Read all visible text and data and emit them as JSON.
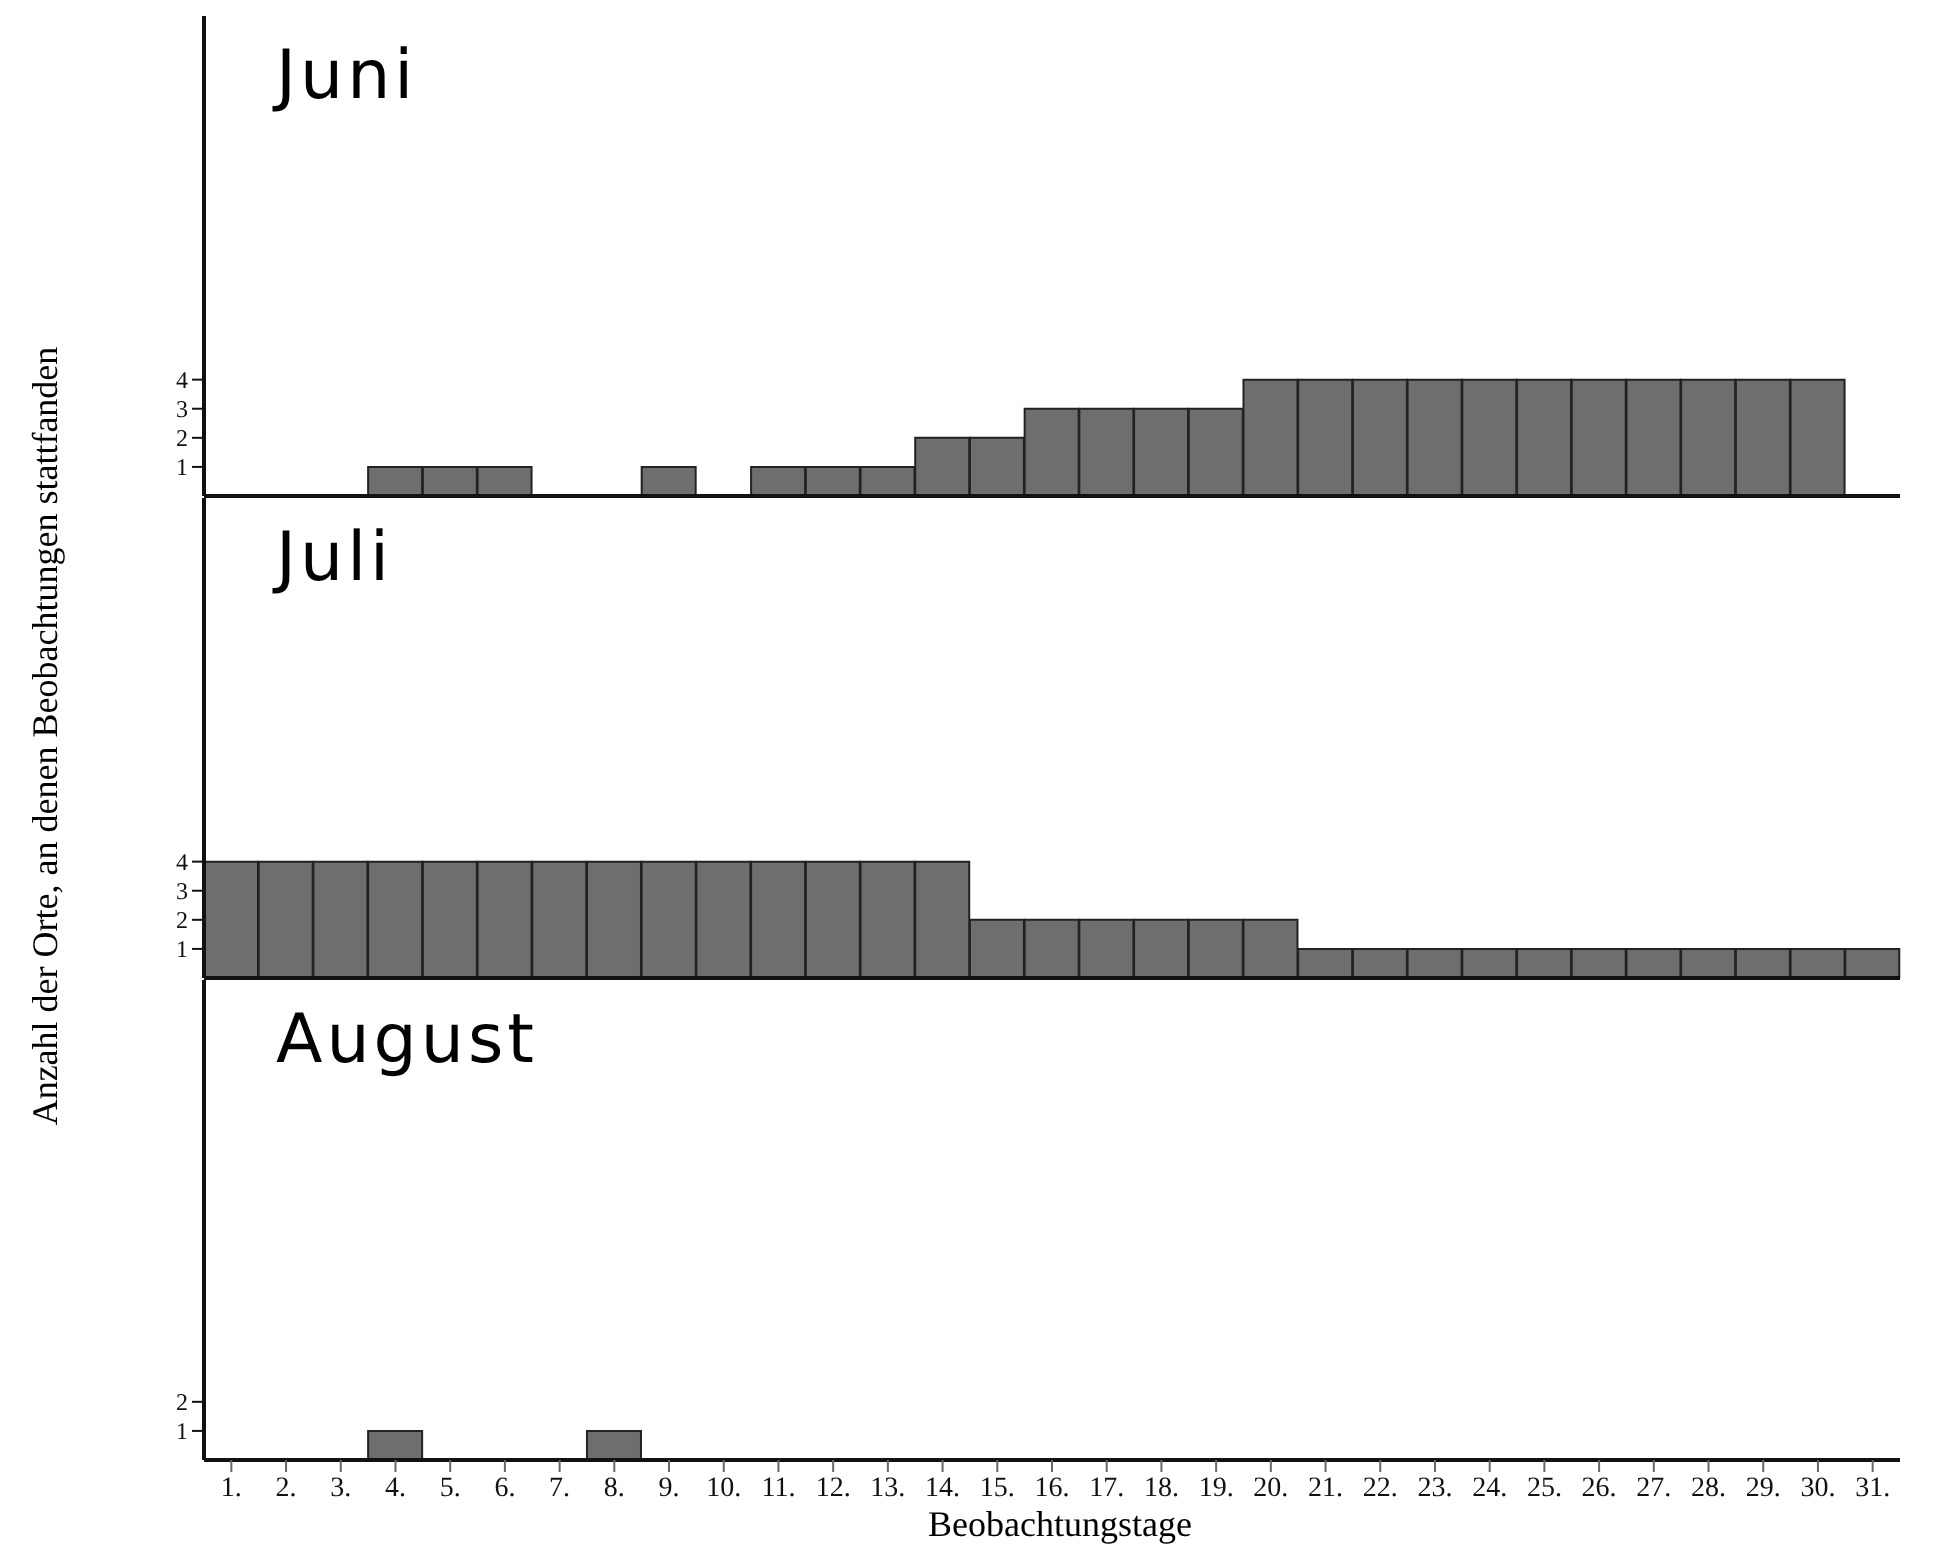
{
  "chart_data": [
    {
      "type": "bar",
      "title": "Juni",
      "categories": [
        "1.",
        "2.",
        "3.",
        "4.",
        "5.",
        "6.",
        "7.",
        "8.",
        "9.",
        "10.",
        "11.",
        "12.",
        "13.",
        "14.",
        "15.",
        "16.",
        "17.",
        "18.",
        "19.",
        "20.",
        "21.",
        "22.",
        "23.",
        "24.",
        "25.",
        "26.",
        "27.",
        "28.",
        "29.",
        "30.",
        "31."
      ],
      "values": [
        0,
        0,
        0,
        1,
        1,
        1,
        0,
        0,
        1,
        0,
        1,
        1,
        1,
        2,
        2,
        3,
        3,
        3,
        3,
        4,
        4,
        4,
        4,
        4,
        4,
        4,
        4,
        4,
        4,
        4,
        0
      ],
      "color": "#6e6e6e",
      "ylim": [
        0,
        16.5
      ],
      "yticks": [
        1,
        2,
        3,
        4
      ],
      "grid": false,
      "tick_labels": "y"
    },
    {
      "type": "bar",
      "title": "Juli",
      "ylabel": "Anzahl der Orte, an denen Beobachtungen stattfanden",
      "categories": [
        "1.",
        "2.",
        "3.",
        "4.",
        "5.",
        "6.",
        "7.",
        "8.",
        "9.",
        "10.",
        "11.",
        "12.",
        "13.",
        "14.",
        "15.",
        "16.",
        "17.",
        "18.",
        "19.",
        "20.",
        "21.",
        "22.",
        "23.",
        "24.",
        "25.",
        "26.",
        "27.",
        "28.",
        "29.",
        "30.",
        "31."
      ],
      "values": [
        4,
        4,
        4,
        4,
        4,
        4,
        4,
        4,
        4,
        4,
        4,
        4,
        4,
        4,
        2,
        2,
        2,
        2,
        2,
        2,
        1,
        1,
        1,
        1,
        1,
        1,
        1,
        1,
        1,
        1,
        1
      ],
      "color": "#6e6e6e",
      "ylim": [
        0,
        16.5
      ],
      "yticks": [
        1,
        2,
        3,
        4
      ],
      "grid": false,
      "tick_labels": "y"
    },
    {
      "type": "bar",
      "title": "August",
      "xlabel": "Beobachtungstage",
      "categories": [
        "1.",
        "2.",
        "3.",
        "4.",
        "5.",
        "6.",
        "7.",
        "8.",
        "9.",
        "10.",
        "11.",
        "12.",
        "13.",
        "14.",
        "15.",
        "16.",
        "17.",
        "18.",
        "19.",
        "20.",
        "21.",
        "22.",
        "23.",
        "24.",
        "25.",
        "26.",
        "27.",
        "28.",
        "29.",
        "30.",
        "31."
      ],
      "values": [
        0,
        0,
        0,
        1,
        0,
        0,
        0,
        1,
        0,
        0,
        0,
        0,
        0,
        0,
        0,
        0,
        0,
        0,
        0,
        0,
        0,
        0,
        0,
        0,
        0,
        0,
        0,
        0,
        0,
        0,
        0
      ],
      "color": "#6e6e6e",
      "ylim": [
        0,
        16.5
      ],
      "yticks": [
        1,
        2
      ],
      "grid": false
    }
  ]
}
